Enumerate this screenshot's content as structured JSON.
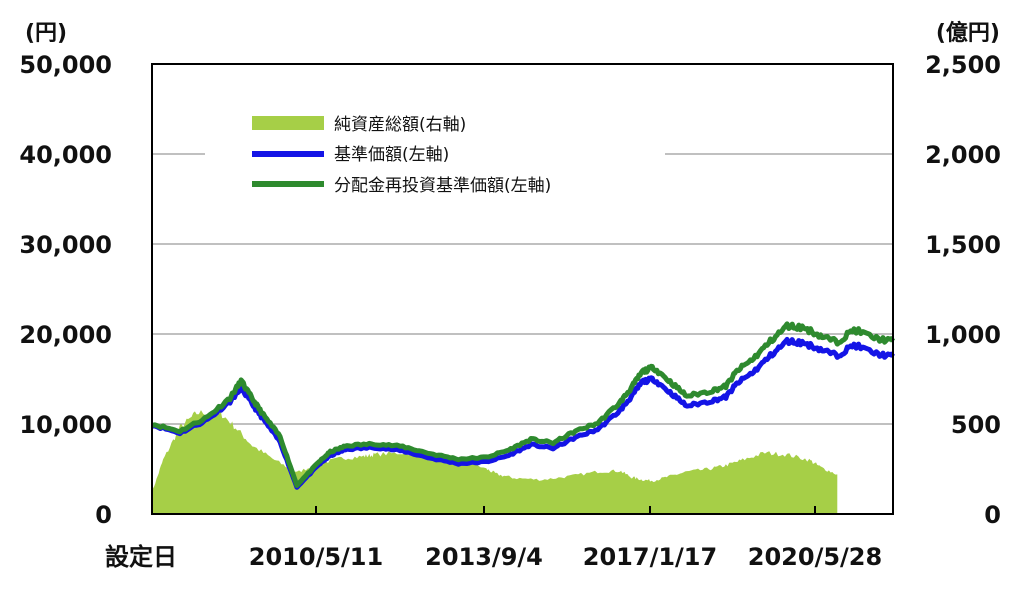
{
  "chart_data": {
    "type": "line",
    "title": "",
    "left_unit": "(円)",
    "right_unit": "(億円)",
    "y_left": {
      "lim": [
        0,
        50000
      ],
      "ticks": [
        "0",
        "10,000",
        "20,000",
        "30,000",
        "40,000",
        "50,000"
      ]
    },
    "y_right": {
      "lim": [
        0,
        2500
      ],
      "ticks": [
        "0",
        "500",
        "1,000",
        "1,500",
        "2,000",
        "2,500"
      ]
    },
    "x_ticks": [
      "設定日",
      "2010/5/11",
      "2013/9/4",
      "2017/1/17",
      "2020/5/28"
    ],
    "grid": "horizontal",
    "legend_position": "top-left",
    "series": [
      {
        "name": "純資産総額(右軸)",
        "kind": "area",
        "axis": "right",
        "color": "#a6cf47",
        "x": [
          0,
          0.02,
          0.05,
          0.08,
          0.12,
          0.15,
          0.18,
          0.22,
          0.26,
          0.3,
          0.34,
          0.38,
          0.4,
          0.45,
          0.5,
          0.55,
          0.6,
          0.62,
          0.65,
          0.7,
          0.75,
          0.8,
          0.84,
          0.86,
          0.88,
          0.9,
          0.93,
          0.96,
          1.0,
          1.03,
          1.06,
          1.1,
          1.14,
          1.18,
          1.2,
          1.23
        ],
        "values": [
          120,
          300,
          480,
          560,
          570,
          480,
          380,
          300,
          230,
          280,
          310,
          320,
          330,
          340,
          330,
          310,
          250,
          220,
          200,
          190,
          210,
          235,
          240,
          205,
          190,
          185,
          210,
          235,
          250,
          270,
          300,
          340,
          330,
          300,
          260,
          220
        ]
      },
      {
        "name": "基準価額(左軸)",
        "kind": "line",
        "axis": "left",
        "color": "#1414e6",
        "x": [
          0,
          0.05,
          0.1,
          0.14,
          0.16,
          0.18,
          0.2,
          0.23,
          0.26,
          0.3,
          0.32,
          0.35,
          0.4,
          0.45,
          0.5,
          0.55,
          0.6,
          0.64,
          0.68,
          0.72,
          0.76,
          0.8,
          0.84,
          0.86,
          0.88,
          0.9,
          0.93,
          0.96,
          1.0,
          1.03,
          1.05,
          1.08,
          1.11,
          1.14,
          1.17,
          1.2,
          1.23,
          1.26,
          1.3,
          1.33
        ],
        "values": [
          9900,
          9000,
          10500,
          12500,
          14000,
          12200,
          10500,
          8000,
          3000,
          5500,
          6500,
          7200,
          7400,
          7000,
          6200,
          5600,
          5800,
          6500,
          7700,
          7300,
          8500,
          9400,
          11500,
          13000,
          14700,
          15000,
          13500,
          12000,
          12500,
          13000,
          14500,
          15800,
          17600,
          19200,
          19000,
          18300,
          17600,
          18800,
          17800,
          17500
        ]
      },
      {
        "name": "分配金再投資基準価額(左軸)",
        "kind": "line",
        "axis": "left",
        "color": "#2e8a2e",
        "x": [
          0,
          0.05,
          0.1,
          0.14,
          0.16,
          0.18,
          0.2,
          0.23,
          0.26,
          0.3,
          0.32,
          0.35,
          0.4,
          0.45,
          0.5,
          0.55,
          0.6,
          0.64,
          0.68,
          0.72,
          0.76,
          0.8,
          0.84,
          0.86,
          0.88,
          0.9,
          0.93,
          0.96,
          1.0,
          1.03,
          1.05,
          1.08,
          1.11,
          1.14,
          1.17,
          1.2,
          1.23,
          1.26,
          1.3,
          1.33
        ],
        "values": [
          10000,
          9200,
          10800,
          12900,
          14800,
          12800,
          11000,
          8600,
          3200,
          5800,
          6900,
          7600,
          7800,
          7500,
          6700,
          6100,
          6300,
          7100,
          8300,
          7900,
          9200,
          10100,
          12400,
          14000,
          15800,
          16300,
          14700,
          13100,
          13600,
          14200,
          15900,
          17300,
          19200,
          20900,
          20700,
          19800,
          19100,
          20500,
          19500,
          19200
        ]
      }
    ]
  }
}
